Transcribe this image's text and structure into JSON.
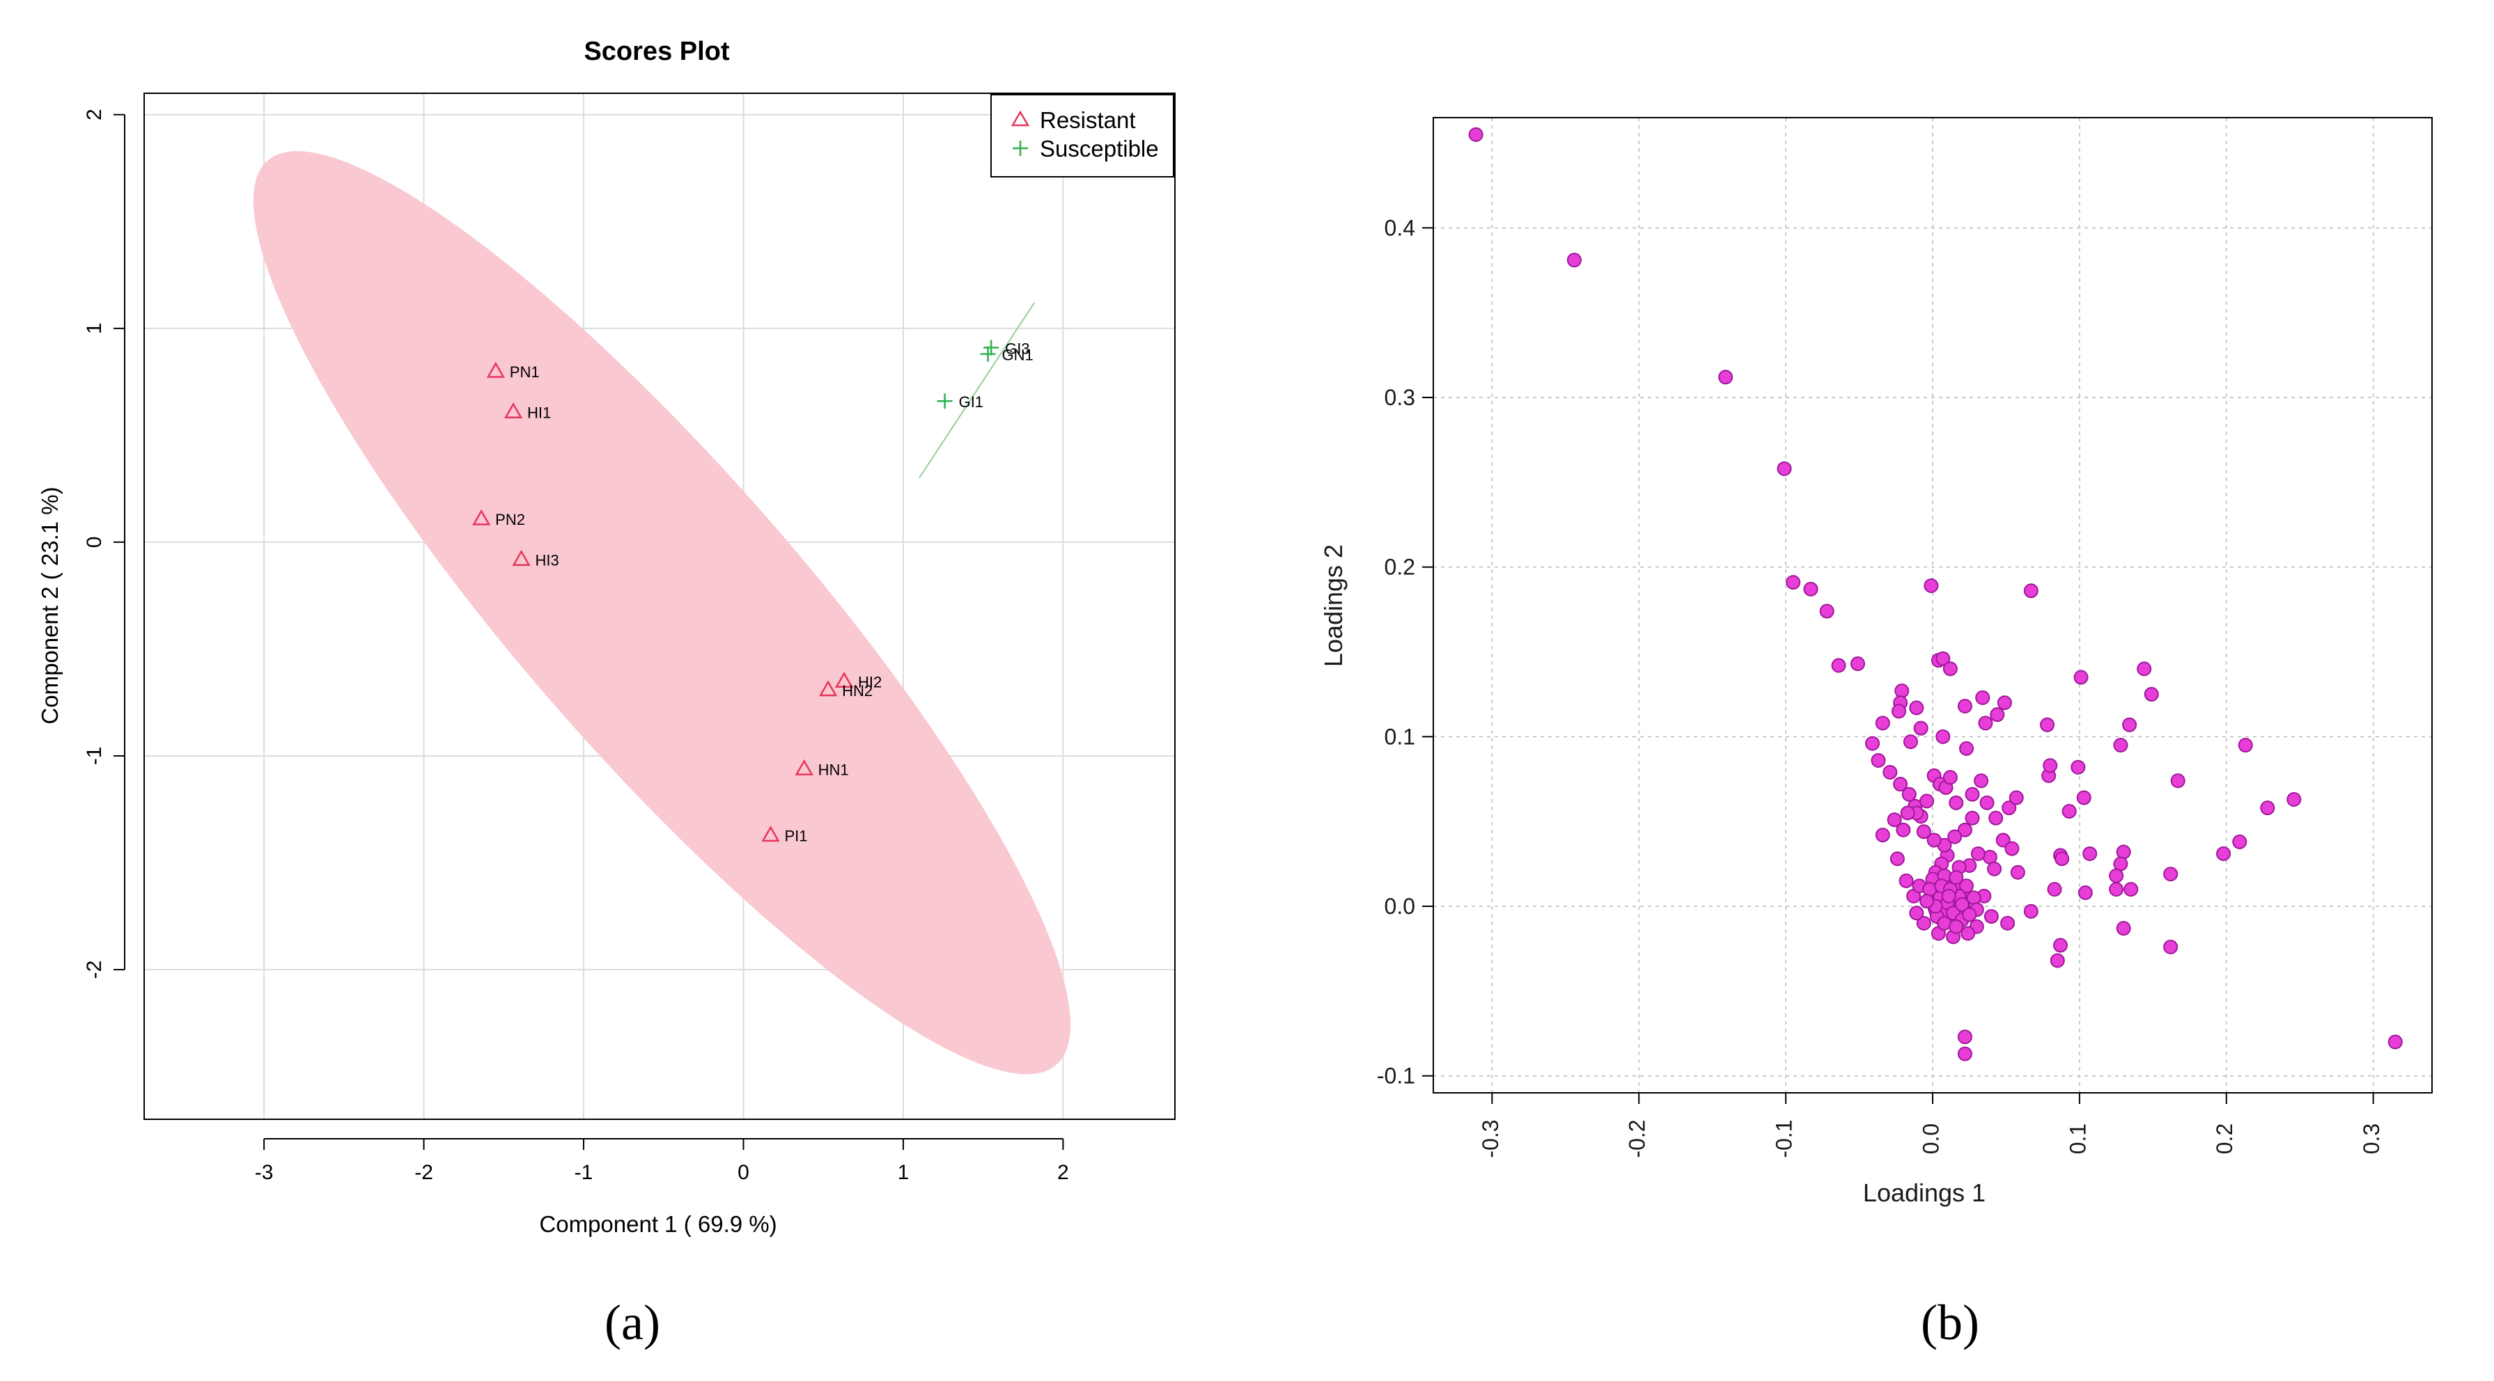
{
  "chart_data": [
    {
      "type": "scatter",
      "title": "Scores Plot",
      "xlabel": "Component 1 ( 69.9 %)",
      "ylabel": "Component 2 ( 23.1 %)",
      "xlim": [
        -3.75,
        2.7
      ],
      "ylim": [
        -2.7,
        2.1
      ],
      "xticks": [
        "-3",
        "-2",
        "-1",
        "0",
        "1",
        "2"
      ],
      "xtick_values": [
        -3,
        -2,
        -1,
        0,
        1,
        2
      ],
      "yticks": [
        "-2",
        "-1",
        "0",
        "1",
        "2"
      ],
      "ytick_values": [
        -2,
        -1,
        0,
        1,
        2
      ],
      "grid": true,
      "legend_position": "top-right",
      "caption": "(a)",
      "series": [
        {
          "name": "Resistant",
          "marker": "triangle",
          "color": "#e8365a",
          "points": [
            {
              "label": "PN1",
              "x": -1.55,
              "y": 0.8
            },
            {
              "label": "HI1",
              "x": -1.44,
              "y": 0.61
            },
            {
              "label": "PN2",
              "x": -1.64,
              "y": 0.11
            },
            {
              "label": "HI3",
              "x": -1.39,
              "y": -0.08
            },
            {
              "label": "HI2",
              "x": 0.63,
              "y": -0.65
            },
            {
              "label": "HN2",
              "x": 0.53,
              "y": -0.69
            },
            {
              "label": "HN1",
              "x": 0.38,
              "y": -1.06
            },
            {
              "label": "PI1",
              "x": 0.17,
              "y": -1.37
            }
          ]
        },
        {
          "name": "Susceptible",
          "marker": "plus",
          "color": "#2fb04a",
          "points": [
            {
              "label": "GI3",
              "x": 1.55,
              "y": 0.91
            },
            {
              "label": "GN1",
              "x": 1.53,
              "y": 0.88
            },
            {
              "label": "GI1",
              "x": 1.26,
              "y": 0.66
            }
          ]
        }
      ],
      "ellipse": {
        "cx": -0.51,
        "cy": -0.33,
        "angle_deg": -40.6,
        "semi_major": 3.25,
        "semi_minor": 0.735,
        "color": "#f9c5cf"
      },
      "susceptible_ellipse_line": {
        "x1": 1.1,
        "y1": 0.3,
        "x2": 1.82,
        "y2": 1.12,
        "color": "#8fd19e"
      }
    },
    {
      "type": "scatter",
      "xlabel": "Loadings 1",
      "ylabel": "Loadings 2",
      "xlim": [
        -0.34,
        0.34
      ],
      "ylim": [
        -0.11,
        0.465
      ],
      "xticks": [
        "-0.3",
        "-0.2",
        "-0.1",
        "0.0",
        "0.1",
        "0.2",
        "0.3"
      ],
      "xtick_values": [
        -0.3,
        -0.2,
        -0.1,
        0.0,
        0.1,
        0.2,
        0.3
      ],
      "yticks": [
        "-0.1",
        "0.0",
        "0.1",
        "0.2",
        "0.3",
        "0.4"
      ],
      "ytick_values": [
        -0.1,
        0.0,
        0.1,
        0.2,
        0.3,
        0.4
      ],
      "grid": true,
      "caption": "(b)",
      "marker_color": "#e83ed8",
      "marker_edge": "#a0179a",
      "points": [
        [
          -0.311,
          0.455
        ],
        [
          -0.244,
          0.381
        ],
        [
          -0.141,
          0.312
        ],
        [
          -0.101,
          0.258
        ],
        [
          -0.095,
          0.191
        ],
        [
          -0.083,
          0.187
        ],
        [
          -0.072,
          0.174
        ],
        [
          -0.064,
          0.142
        ],
        [
          -0.051,
          0.143
        ],
        [
          -0.001,
          0.189
        ],
        [
          0.067,
          0.186
        ],
        [
          0.315,
          -0.08
        ],
        [
          0.144,
          0.14
        ],
        [
          0.149,
          0.125
        ],
        [
          0.101,
          0.135
        ],
        [
          0.213,
          0.095
        ],
        [
          0.246,
          0.063
        ],
        [
          0.228,
          0.058
        ],
        [
          0.209,
          0.038
        ],
        [
          0.198,
          0.031
        ],
        [
          0.167,
          0.074
        ],
        [
          0.134,
          0.107
        ],
        [
          0.128,
          0.095
        ],
        [
          0.099,
          0.082
        ],
        [
          0.103,
          0.064
        ],
        [
          0.079,
          0.077
        ],
        [
          0.08,
          0.083
        ],
        [
          0.078,
          0.107
        ],
        [
          0.093,
          0.056
        ],
        [
          0.087,
          0.03
        ],
        [
          0.088,
          0.028
        ],
        [
          0.107,
          0.031
        ],
        [
          0.13,
          0.032
        ],
        [
          0.128,
          0.025
        ],
        [
          0.125,
          0.018
        ],
        [
          0.125,
          0.01
        ],
        [
          0.135,
          0.01
        ],
        [
          0.162,
          0.019
        ],
        [
          0.13,
          -0.013
        ],
        [
          0.162,
          -0.024
        ],
        [
          0.087,
          -0.023
        ],
        [
          0.085,
          -0.032
        ],
        [
          0.083,
          0.01
        ],
        [
          0.067,
          -0.003
        ],
        [
          0.051,
          -0.01
        ],
        [
          0.022,
          -0.077
        ],
        [
          0.022,
          -0.087
        ],
        [
          0.104,
          0.008
        ],
        [
          -0.021,
          0.127
        ],
        [
          -0.022,
          0.12
        ],
        [
          -0.023,
          0.115
        ],
        [
          0.004,
          0.145
        ],
        [
          0.007,
          0.146
        ],
        [
          0.012,
          0.14
        ],
        [
          0.022,
          0.118
        ],
        [
          0.034,
          0.123
        ],
        [
          0.049,
          0.12
        ],
        [
          0.044,
          0.113
        ],
        [
          0.036,
          0.108
        ],
        [
          -0.011,
          0.117
        ],
        [
          -0.008,
          0.105
        ],
        [
          0.007,
          0.1
        ],
        [
          0.023,
          0.093
        ],
        [
          -0.015,
          0.097
        ],
        [
          -0.034,
          0.108
        ],
        [
          -0.041,
          0.096
        ],
        [
          -0.037,
          0.086
        ],
        [
          -0.029,
          0.079
        ],
        [
          -0.022,
          0.072
        ],
        [
          -0.016,
          0.066
        ],
        [
          -0.012,
          0.059
        ],
        [
          -0.008,
          0.053
        ],
        [
          -0.004,
          0.062
        ],
        [
          0.001,
          0.077
        ],
        [
          0.005,
          0.072
        ],
        [
          0.009,
          0.07
        ],
        [
          0.012,
          0.076
        ],
        [
          0.016,
          0.061
        ],
        [
          0.027,
          0.066
        ],
        [
          0.033,
          0.074
        ],
        [
          0.037,
          0.061
        ],
        [
          0.043,
          0.052
        ],
        [
          0.052,
          0.058
        ],
        [
          0.057,
          0.064
        ],
        [
          0.048,
          0.039
        ],
        [
          0.054,
          0.034
        ],
        [
          0.039,
          0.029
        ],
        [
          0.031,
          0.031
        ],
        [
          0.025,
          0.024
        ],
        [
          0.018,
          0.023
        ],
        [
          0.01,
          0.03
        ],
        [
          0.006,
          0.025
        ],
        [
          0.002,
          0.02
        ],
        [
          -0.006,
          0.044
        ],
        [
          -0.011,
          0.055
        ],
        [
          -0.017,
          0.055
        ],
        [
          -0.02,
          0.045
        ],
        [
          -0.026,
          0.051
        ],
        [
          -0.034,
          0.042
        ],
        [
          -0.024,
          0.028
        ],
        [
          -0.018,
          0.015
        ],
        [
          0.027,
          0.052
        ],
        [
          0.022,
          0.045
        ],
        [
          0.015,
          0.041
        ],
        [
          0.008,
          0.036
        ],
        [
          0.001,
          0.039
        ],
        [
          0.042,
          0.022
        ],
        [
          0.058,
          0.02
        ],
        [
          0.035,
          0.006
        ],
        [
          0.04,
          -0.006
        ],
        [
          0.03,
          -0.012
        ],
        [
          0.024,
          -0.016
        ],
        [
          0.014,
          -0.018
        ],
        [
          0.004,
          -0.016
        ],
        [
          -0.006,
          -0.01
        ],
        [
          -0.011,
          -0.004
        ],
        [
          -0.013,
          0.006
        ],
        [
          -0.009,
          0.012
        ],
        [
          0.0,
          0.016
        ],
        [
          0.008,
          0.018
        ],
        [
          0.016,
          0.017
        ],
        [
          0.023,
          0.012
        ],
        [
          0.028,
          0.005
        ],
        [
          0.03,
          -0.002
        ],
        [
          0.005,
          0.005
        ],
        [
          0.01,
          0.002
        ],
        [
          0.014,
          -0.004
        ],
        [
          0.003,
          -0.006
        ],
        [
          0.018,
          0.006
        ],
        [
          0.02,
          -0.008
        ],
        [
          -0.002,
          0.01
        ],
        [
          0.006,
          0.012
        ],
        [
          0.012,
          0.01
        ],
        [
          0.002,
          0.0
        ],
        [
          0.008,
          -0.01
        ],
        [
          0.016,
          -0.012
        ],
        [
          0.02,
          0.001
        ],
        [
          0.025,
          -0.005
        ],
        [
          -0.004,
          0.003
        ],
        [
          0.011,
          0.006
        ]
      ]
    }
  ],
  "scores_plot": {
    "legend_resistant": "Resistant",
    "legend_susceptible": "Susceptible"
  }
}
